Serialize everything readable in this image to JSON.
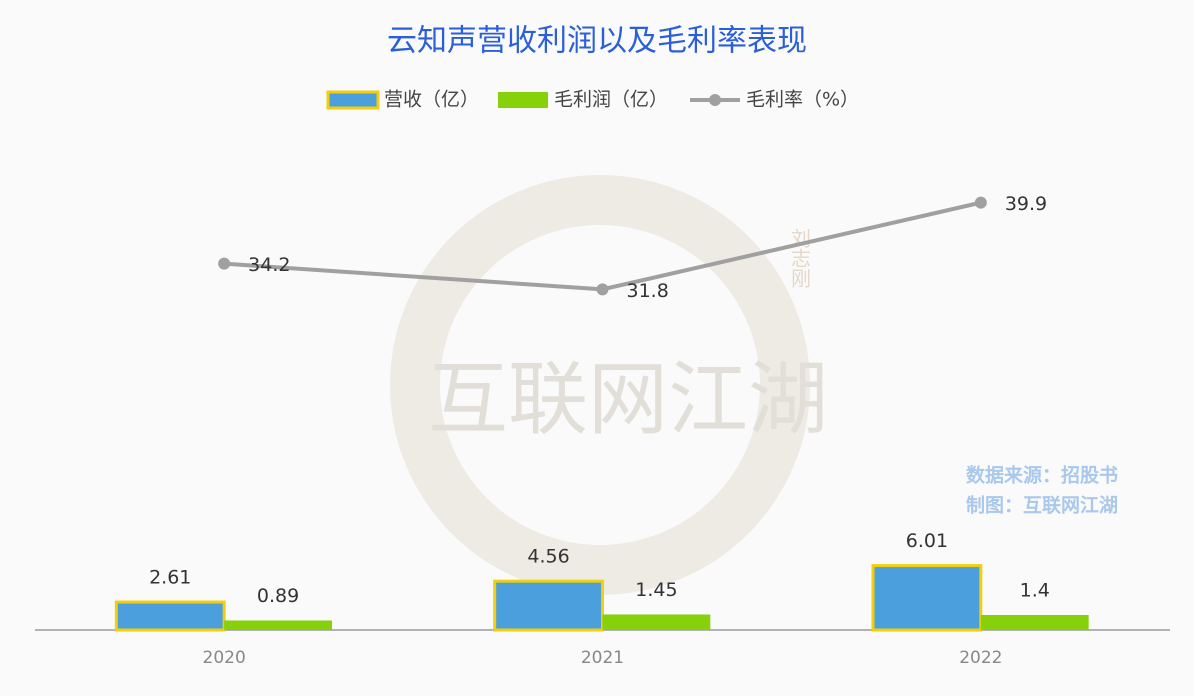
{
  "chart_data": {
    "type": "bar",
    "title": "云知声营收利润以及毛利率表现",
    "categories": [
      "2020",
      "2021",
      "2022"
    ],
    "series": [
      {
        "name": "营收（亿）",
        "color": "#4a9fdc",
        "border": "#f2cf0a",
        "type": "bar",
        "values": [
          2.61,
          4.56,
          6.01
        ]
      },
      {
        "name": "毛利润（亿）",
        "color": "#86d10a",
        "type": "bar",
        "values": [
          0.89,
          1.45,
          1.4
        ]
      },
      {
        "name": "毛利率（%）",
        "color": "#a0a0a0",
        "type": "line",
        "values": [
          34.2,
          31.8,
          39.9
        ]
      }
    ],
    "ylim": [
      0,
      45
    ],
    "annotations": [
      "数据来源：招股书",
      "制图：互联网江湖"
    ],
    "watermark": [
      "互联网江湖",
      "刘志刚"
    ]
  }
}
